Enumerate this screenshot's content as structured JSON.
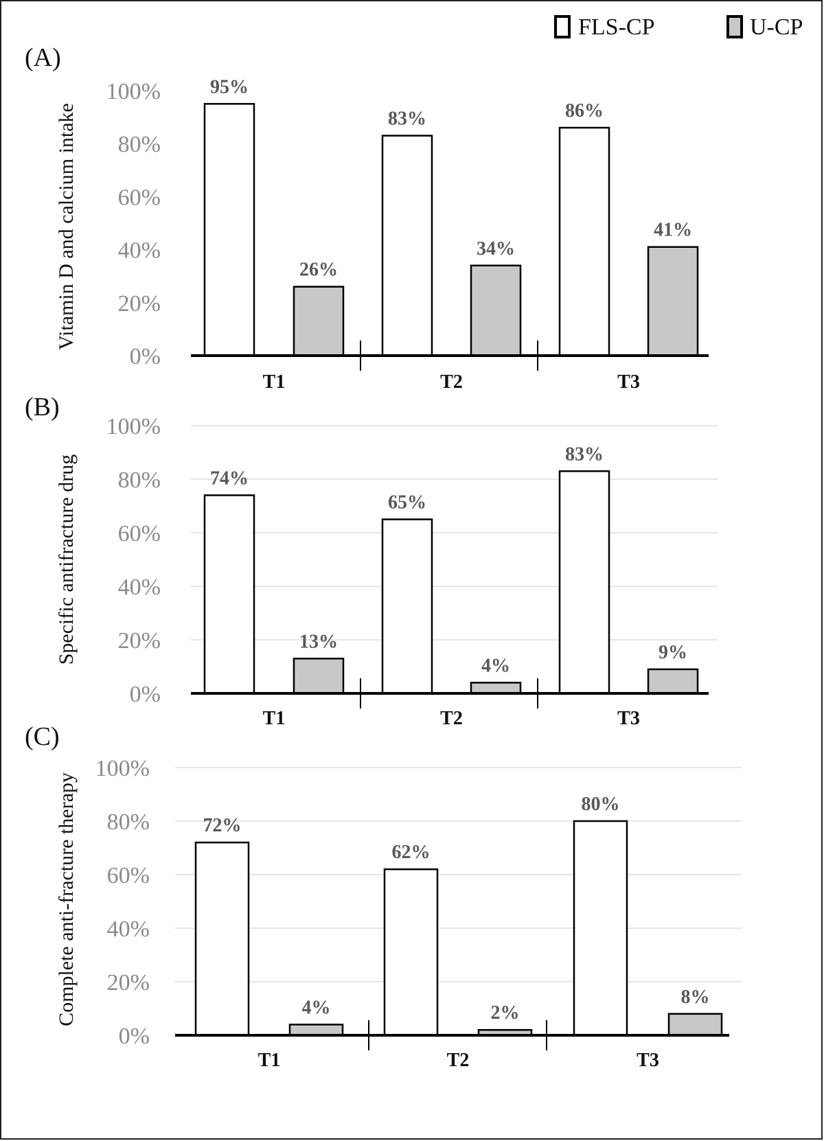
{
  "legend": [
    {
      "name": "FLS-CP",
      "color": "#ffffff"
    },
    {
      "name": "U-CP",
      "color": "#c8c8c8"
    }
  ],
  "colors": {
    "frame": "#222222",
    "grid": "#e6e6e6",
    "axis": "#000000"
  },
  "chart_data": [
    {
      "type": "bar",
      "panel_label": "(A)",
      "ylabel": "Vitamin D and calcium intake",
      "categories": [
        "T1",
        "T2",
        "T3"
      ],
      "yticks": [
        "0%",
        "20%",
        "40%",
        "60%",
        "80%",
        "100%"
      ],
      "ylim": [
        0,
        100
      ],
      "grid": false,
      "series": [
        {
          "name": "FLS-CP",
          "values": [
            95,
            83,
            86
          ],
          "labels": [
            "95%",
            "83%",
            "86%"
          ]
        },
        {
          "name": "U-CP",
          "values": [
            26,
            34,
            41
          ],
          "labels": [
            "26%",
            "34%",
            "41%"
          ]
        }
      ]
    },
    {
      "type": "bar",
      "panel_label": "(B)",
      "ylabel": "Specific antifracture drug",
      "categories": [
        "T1",
        "T2",
        "T3"
      ],
      "yticks": [
        "0%",
        "20%",
        "40%",
        "60%",
        "80%",
        "100%"
      ],
      "ylim": [
        0,
        100
      ],
      "grid": true,
      "series": [
        {
          "name": "FLS-CP",
          "values": [
            74,
            65,
            83
          ],
          "labels": [
            "74%",
            "65%",
            "83%"
          ]
        },
        {
          "name": "U-CP",
          "values": [
            13,
            4,
            9
          ],
          "labels": [
            "13%",
            "4%",
            "9%"
          ]
        }
      ]
    },
    {
      "type": "bar",
      "panel_label": "(C)",
      "ylabel": "Complete anti-fracture therapy",
      "categories": [
        "T1",
        "T2",
        "T3"
      ],
      "yticks": [
        "0%",
        "20%",
        "40%",
        "60%",
        "80%",
        "100%"
      ],
      "ylim": [
        0,
        100
      ],
      "grid": true,
      "series": [
        {
          "name": "FLS-CP",
          "values": [
            72,
            62,
            80
          ],
          "labels": [
            "72%",
            "62%",
            "80%"
          ]
        },
        {
          "name": "U-CP",
          "values": [
            4,
            2,
            8
          ],
          "labels": [
            "4%",
            "2%",
            "8%"
          ]
        }
      ]
    }
  ]
}
